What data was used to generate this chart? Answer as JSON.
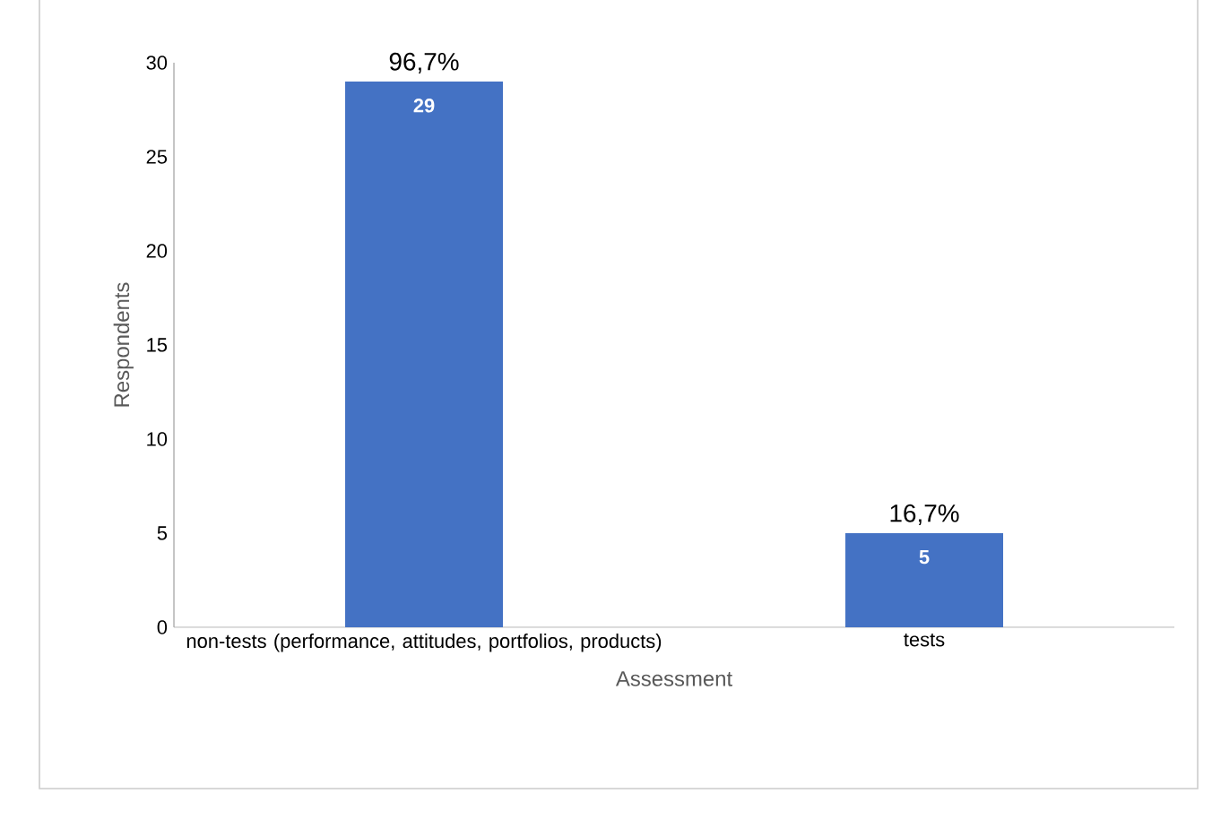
{
  "chart_data": {
    "type": "bar",
    "categories": [
      "non-tests (performance, attitudes, portfolios, products)",
      "tests"
    ],
    "values": [
      29,
      5
    ],
    "color": "#4472c4",
    "ylim": [
      0,
      30
    ],
    "yticks": [
      0,
      5,
      10,
      15,
      20,
      25,
      30
    ],
    "xlabel": "Assessment",
    "ylabel": "Respondents",
    "data_labels": true,
    "grid": false,
    "annotations": [
      {
        "text": "96,7%",
        "x": "non-tests (performance, attitudes, portfolios, products)",
        "y": 29
      },
      {
        "text": "16,7%",
        "x": "tests",
        "y": 5
      }
    ]
  }
}
